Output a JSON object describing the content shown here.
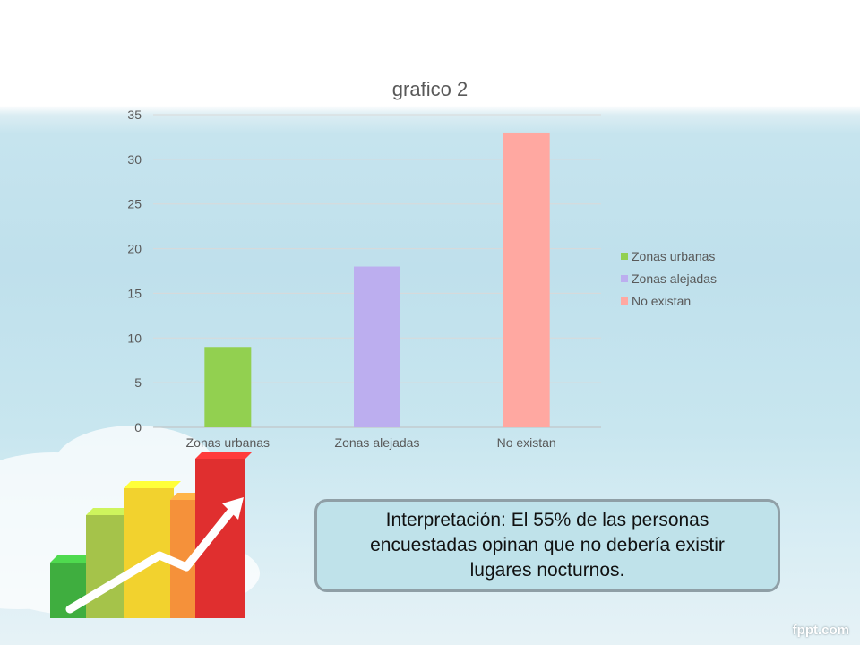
{
  "chart_data": {
    "type": "bar",
    "title": "grafico 2",
    "categories": [
      "Zonas urbanas",
      "Zonas alejadas",
      "No existan"
    ],
    "values": [
      9,
      18,
      33
    ],
    "colors": [
      "#92d050",
      "#bcaeef",
      "#ffa8a1"
    ],
    "ylim": [
      0,
      35
    ],
    "yticks": [
      0,
      5,
      10,
      15,
      20,
      25,
      30,
      35
    ],
    "grid": true,
    "legend": {
      "position": "right",
      "entries": [
        "Zonas urbanas",
        "Zonas alejadas",
        "No existan"
      ]
    }
  },
  "interpretation": {
    "line1": "Interpretación: El 55% de las personas",
    "line2": "encuestadas opinan que no debería existir",
    "line3": "lugares nocturnos."
  },
  "watermark": "fppt.com",
  "decoration": {
    "icon": "bar-chart-growth-icon",
    "bar_colors": [
      "#3fae3f",
      "#a5c34a",
      "#f2d22e",
      "#f5913a",
      "#e02f2f"
    ]
  }
}
